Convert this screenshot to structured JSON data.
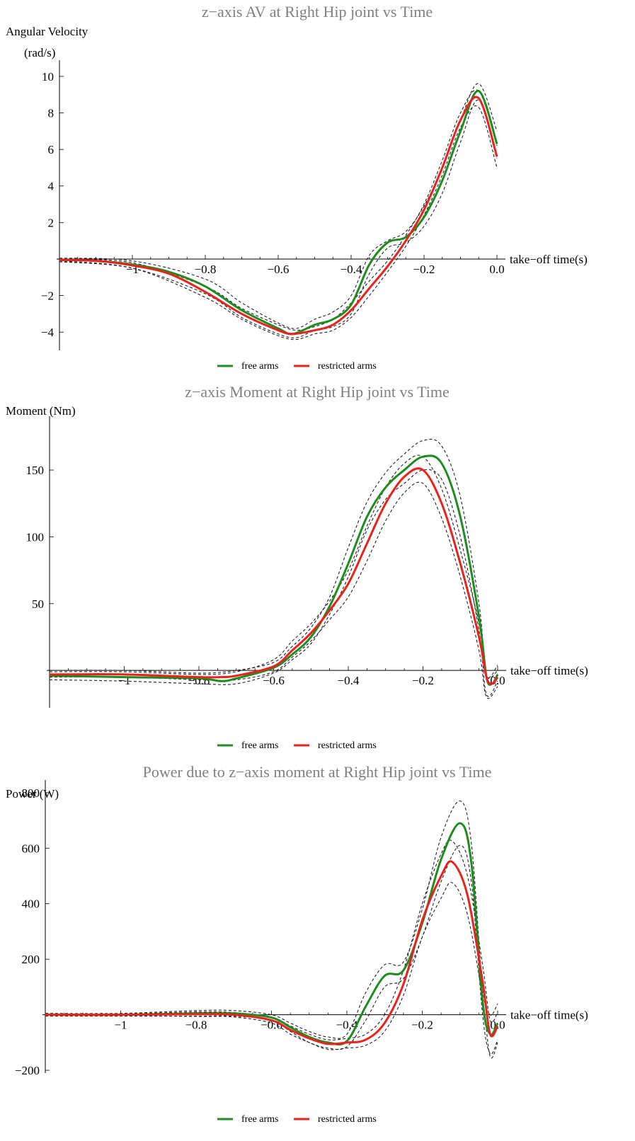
{
  "chart_data": [
    {
      "type": "line",
      "title": "z−axis AV at Right Hip joint  vs Time",
      "ylabel_line1": "Angular Velocity",
      "ylabel_line2": "(rad/s)",
      "xlabel": "take−off time(s)",
      "xlim": [
        -1.2,
        0.0
      ],
      "ylim": [
        -5.0,
        10.5
      ],
      "xticks": [
        -1,
        -0.8,
        -0.6,
        -0.4,
        -0.2,
        0.0
      ],
      "xtick_labels": [
        "−1",
        "−0.8",
        "−0.6",
        "−0.4",
        "−0.2",
        "0.0"
      ],
      "yticks": [
        -4,
        -2,
        2,
        4,
        6,
        8,
        10
      ],
      "ytick_labels": [
        "−4",
        "−2",
        "2",
        "4",
        "6",
        "8",
        "10"
      ],
      "series": [
        {
          "name": "free arms",
          "color": "#1e8c1e",
          "x": [
            -1.2,
            -1.1,
            -1.0,
            -0.9,
            -0.8,
            -0.7,
            -0.6,
            -0.56,
            -0.5,
            -0.45,
            -0.4,
            -0.35,
            -0.3,
            -0.25,
            -0.2,
            -0.15,
            -0.1,
            -0.05,
            0.0
          ],
          "y": [
            -0.05,
            -0.1,
            -0.3,
            -0.7,
            -1.5,
            -2.8,
            -3.8,
            -4.1,
            -3.6,
            -3.3,
            -2.5,
            -0.3,
            0.9,
            1.2,
            2.3,
            4.3,
            7.0,
            9.2,
            6.3
          ]
        },
        {
          "name": "restricted arms",
          "color": "#e8231e",
          "x": [
            -1.2,
            -1.1,
            -1.0,
            -0.9,
            -0.8,
            -0.7,
            -0.6,
            -0.56,
            -0.5,
            -0.45,
            -0.4,
            -0.35,
            -0.3,
            -0.25,
            -0.2,
            -0.15,
            -0.1,
            -0.05,
            0.0
          ],
          "y": [
            -0.05,
            -0.1,
            -0.35,
            -0.8,
            -1.8,
            -3.0,
            -3.9,
            -4.1,
            -3.9,
            -3.6,
            -2.8,
            -1.6,
            -0.4,
            1.0,
            2.7,
            5.0,
            7.6,
            8.8,
            5.6
          ]
        }
      ],
      "bands": [
        {
          "x": [
            -1.2,
            -1.0,
            -0.8,
            -0.7,
            -0.6,
            -0.55,
            -0.5,
            -0.45,
            -0.4,
            -0.35,
            -0.3,
            -0.25,
            -0.2,
            -0.15,
            -0.1,
            -0.05,
            0.0
          ],
          "y": [
            0.05,
            -0.1,
            -1.1,
            -2.4,
            -3.5,
            -3.8,
            -3.3,
            -2.9,
            -2.0,
            0.2,
            1.0,
            1.5,
            2.9,
            5.0,
            7.6,
            9.6,
            7.0
          ]
        },
        {
          "x": [
            -1.2,
            -1.0,
            -0.8,
            -0.7,
            -0.6,
            -0.55,
            -0.5,
            -0.45,
            -0.4,
            -0.35,
            -0.3,
            -0.25,
            -0.2,
            -0.15,
            -0.1,
            -0.05,
            0.0
          ],
          "y": [
            -0.15,
            -0.5,
            -1.9,
            -3.2,
            -4.1,
            -4.3,
            -3.9,
            -3.7,
            -3.0,
            -0.8,
            0.6,
            0.9,
            1.8,
            3.6,
            6.4,
            8.7,
            5.5
          ]
        },
        {
          "x": [
            -1.2,
            -1.0,
            -0.8,
            -0.7,
            -0.6,
            -0.55,
            -0.5,
            -0.45,
            -0.4,
            -0.35,
            -0.3,
            -0.25,
            -0.2,
            -0.15,
            -0.1,
            -0.05,
            0.0
          ],
          "y": [
            0.0,
            -0.2,
            -1.5,
            -2.7,
            -3.6,
            -3.9,
            -3.7,
            -3.3,
            -2.4,
            -1.2,
            -0.1,
            1.3,
            3.0,
            5.4,
            8.0,
            9.2,
            6.2
          ]
        },
        {
          "x": [
            -1.2,
            -1.0,
            -0.8,
            -0.7,
            -0.6,
            -0.55,
            -0.5,
            -0.45,
            -0.4,
            -0.35,
            -0.3,
            -0.25,
            -0.2,
            -0.15,
            -0.1,
            -0.05,
            0.0
          ],
          "y": [
            -0.1,
            -0.5,
            -2.1,
            -3.3,
            -4.2,
            -4.4,
            -4.1,
            -3.9,
            -3.2,
            -2.0,
            -0.7,
            0.7,
            2.4,
            4.6,
            7.2,
            8.3,
            5.0
          ]
        }
      ],
      "legend": "bottom-center"
    },
    {
      "type": "line",
      "title": "z−axis Moment at Right Hip joint  vs Time",
      "ylabel_line1": "Moment (Nm)",
      "ylabel_line2": "",
      "xlabel": "take−off time(s)",
      "xlim": [
        -1.2,
        0.0
      ],
      "ylim": [
        -28,
        185
      ],
      "xticks": [
        -1,
        -0.8,
        -0.6,
        -0.4,
        -0.2,
        0.0
      ],
      "xtick_labels": [
        "−1",
        "−0.8",
        "−0.6",
        "−0.4",
        "−0.2",
        "0.0"
      ],
      "yticks": [
        50,
        100,
        150
      ],
      "ytick_labels": [
        "50",
        "100",
        "150"
      ],
      "series": [
        {
          "name": "free arms",
          "color": "#1e8c1e",
          "x": [
            -1.2,
            -1.0,
            -0.8,
            -0.74,
            -0.7,
            -0.6,
            -0.55,
            -0.5,
            -0.45,
            -0.4,
            -0.35,
            -0.3,
            -0.25,
            -0.2,
            -0.15,
            -0.1,
            -0.05,
            -0.03,
            -0.015,
            0.0
          ],
          "y": [
            -4,
            -5,
            -6,
            -8,
            -6,
            2,
            12,
            25,
            48,
            80,
            115,
            137,
            150,
            160,
            155,
            115,
            40,
            -5,
            -10,
            -3
          ]
        },
        {
          "name": "restricted arms",
          "color": "#e8231e",
          "x": [
            -1.2,
            -1.0,
            -0.8,
            -0.74,
            -0.7,
            -0.6,
            -0.55,
            -0.5,
            -0.45,
            -0.4,
            -0.35,
            -0.3,
            -0.25,
            -0.2,
            -0.15,
            -0.1,
            -0.05,
            -0.03,
            -0.015,
            0.0
          ],
          "y": [
            -3,
            -3,
            -5,
            -5,
            -4,
            3,
            15,
            28,
            45,
            65,
            95,
            125,
            145,
            150,
            125,
            80,
            25,
            -5,
            -10,
            -5
          ]
        }
      ],
      "bands": [
        {
          "x": [
            -1.2,
            -1.0,
            -0.8,
            -0.7,
            -0.6,
            -0.55,
            -0.5,
            -0.45,
            -0.4,
            -0.35,
            -0.3,
            -0.25,
            -0.2,
            -0.15,
            -0.1,
            -0.05,
            -0.03,
            0.0
          ],
          "y": [
            0,
            0,
            -2,
            0,
            6,
            18,
            32,
            55,
            92,
            126,
            148,
            162,
            172,
            168,
            130,
            50,
            -3,
            4
          ]
        },
        {
          "x": [
            -1.2,
            -1.0,
            -0.8,
            -0.7,
            -0.6,
            -0.55,
            -0.5,
            -0.45,
            -0.4,
            -0.35,
            -0.3,
            -0.25,
            -0.2,
            -0.15,
            -0.1,
            -0.05,
            -0.03,
            0.0
          ],
          "y": [
            -7,
            -8,
            -10,
            -10,
            -2,
            8,
            20,
            42,
            70,
            105,
            128,
            140,
            150,
            143,
            100,
            30,
            -18,
            -8
          ]
        },
        {
          "x": [
            -1.2,
            -1.0,
            -0.8,
            -0.7,
            -0.6,
            -0.55,
            -0.5,
            -0.45,
            -0.4,
            -0.35,
            -0.3,
            -0.25,
            -0.2,
            -0.15,
            -0.1,
            -0.05,
            -0.03,
            0.0
          ],
          "y": [
            -1,
            -1,
            -3,
            -1,
            8,
            22,
            35,
            52,
            75,
            108,
            137,
            155,
            160,
            136,
            90,
            35,
            -4,
            0
          ]
        },
        {
          "x": [
            -1.2,
            -1.0,
            -0.8,
            -0.7,
            -0.6,
            -0.55,
            -0.5,
            -0.45,
            -0.4,
            -0.35,
            -0.3,
            -0.25,
            -0.2,
            -0.15,
            -0.1,
            -0.05,
            -0.03,
            0.0
          ],
          "y": [
            -5,
            -5,
            -7,
            -7,
            -1,
            10,
            22,
            38,
            55,
            82,
            112,
            133,
            140,
            114,
            70,
            15,
            -20,
            -12
          ]
        }
      ],
      "legend": "bottom-center"
    },
    {
      "type": "line",
      "title": "Power due to z−axis moment at Right Hip joint  vs Time",
      "ylabel_line1": "Power (W)",
      "ylabel_line2": "",
      "xlabel": "take−off time(s)",
      "xlim": [
        -1.2,
        0.0
      ],
      "ylim": [
        -210,
        820
      ],
      "xticks": [
        -1,
        -0.8,
        -0.6,
        -0.4,
        -0.2,
        0.0
      ],
      "xtick_labels": [
        "−1",
        "−0.8",
        "−0.6",
        "−0.4",
        "−0.2",
        "0.0"
      ],
      "yticks": [
        -200,
        200,
        400,
        600,
        800
      ],
      "ytick_labels": [
        "−200",
        "200",
        "400",
        "600",
        "800"
      ],
      "series": [
        {
          "name": "free arms",
          "color": "#1e8c1e",
          "x": [
            -1.2,
            -1.0,
            -0.8,
            -0.7,
            -0.6,
            -0.55,
            -0.5,
            -0.45,
            -0.4,
            -0.35,
            -0.3,
            -0.25,
            -0.2,
            -0.15,
            -0.1,
            -0.07,
            -0.04,
            -0.02,
            0.0
          ],
          "y": [
            0,
            0,
            5,
            5,
            -10,
            -45,
            -80,
            -100,
            -95,
            30,
            140,
            160,
            330,
            560,
            690,
            550,
            50,
            -70,
            -30
          ]
        },
        {
          "name": "restricted arms",
          "color": "#e8231e",
          "x": [
            -1.2,
            -1.0,
            -0.8,
            -0.7,
            -0.6,
            -0.55,
            -0.5,
            -0.45,
            -0.4,
            -0.35,
            -0.3,
            -0.25,
            -0.2,
            -0.15,
            -0.12,
            -0.08,
            -0.04,
            -0.02,
            0.0
          ],
          "y": [
            0,
            0,
            2,
            0,
            -20,
            -55,
            -85,
            -105,
            -100,
            -90,
            -30,
            110,
            340,
            500,
            550,
            430,
            120,
            -70,
            -40
          ]
        }
      ],
      "bands": [
        {
          "x": [
            -1.2,
            -1.0,
            -0.8,
            -0.7,
            -0.6,
            -0.55,
            -0.5,
            -0.45,
            -0.4,
            -0.35,
            -0.3,
            -0.25,
            -0.2,
            -0.15,
            -0.1,
            -0.07,
            -0.04,
            -0.02,
            0.0
          ],
          "y": [
            5,
            5,
            15,
            15,
            0,
            -30,
            -60,
            -80,
            -70,
            80,
            180,
            190,
            380,
            640,
            770,
            620,
            100,
            0,
            40
          ]
        },
        {
          "x": [
            -1.2,
            -1.0,
            -0.8,
            -0.7,
            -0.6,
            -0.55,
            -0.5,
            -0.45,
            -0.4,
            -0.35,
            -0.3,
            -0.25,
            -0.2,
            -0.15,
            -0.1,
            -0.07,
            -0.04,
            -0.02,
            0.0
          ],
          "y": [
            -5,
            -5,
            -5,
            -5,
            -20,
            -60,
            -100,
            -120,
            -115,
            -20,
            100,
            130,
            280,
            480,
            610,
            480,
            0,
            -140,
            -90
          ]
        },
        {
          "x": [
            -1.2,
            -1.0,
            -0.8,
            -0.7,
            -0.6,
            -0.55,
            -0.5,
            -0.45,
            -0.4,
            -0.35,
            -0.3,
            -0.25,
            -0.2,
            -0.15,
            -0.12,
            -0.08,
            -0.04,
            -0.02,
            0.0
          ],
          "y": [
            3,
            3,
            10,
            8,
            -10,
            -40,
            -70,
            -90,
            -85,
            -70,
            0,
            160,
            400,
            580,
            625,
            500,
            180,
            -20,
            10
          ]
        },
        {
          "x": [
            -1.2,
            -1.0,
            -0.8,
            -0.7,
            -0.6,
            -0.55,
            -0.5,
            -0.45,
            -0.4,
            -0.35,
            -0.3,
            -0.25,
            -0.2,
            -0.15,
            -0.12,
            -0.08,
            -0.04,
            -0.02,
            0.0
          ],
          "y": [
            -3,
            -3,
            -6,
            -8,
            -30,
            -70,
            -100,
            -125,
            -120,
            -110,
            -60,
            70,
            280,
            420,
            475,
            360,
            60,
            -150,
            -100
          ]
        }
      ],
      "legend": "bottom-center"
    }
  ]
}
